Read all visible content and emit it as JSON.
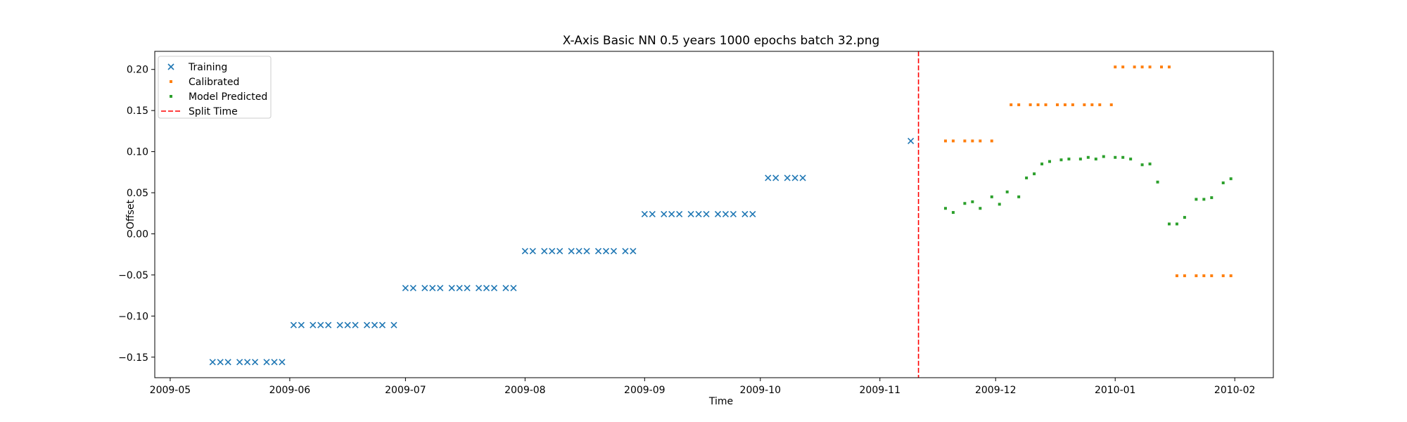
{
  "chart_data": {
    "type": "scatter",
    "title": "X-Axis Basic NN 0.5 years 1000 epochs batch 32.png",
    "xlabel": "Time",
    "ylabel": "Offset",
    "x_type": "date",
    "xlim": [
      "2009-04-27",
      "2010-02-11"
    ],
    "ylim": [
      -0.175,
      0.222
    ],
    "x_ticks": [
      "2009-05",
      "2009-06",
      "2009-07",
      "2009-08",
      "2009-09",
      "2009-10",
      "2009-11",
      "2009-12",
      "2010-01",
      "2010-02"
    ],
    "x_tick_dates": [
      "2009-05-01",
      "2009-06-01",
      "2009-07-01",
      "2009-08-01",
      "2009-09-01",
      "2009-10-01",
      "2009-11-01",
      "2009-12-01",
      "2010-01-01",
      "2010-02-01"
    ],
    "y_ticks": [
      "−0.15",
      "−0.10",
      "−0.05",
      "0.00",
      "0.05",
      "0.10",
      "0.15",
      "0.20"
    ],
    "y_tick_values": [
      -0.15,
      -0.1,
      -0.05,
      0.0,
      0.05,
      0.1,
      0.15,
      0.2
    ],
    "grid": false,
    "legend_position": "top-left",
    "split_time": "2009-11-11",
    "series": [
      {
        "name": "Training",
        "marker": "x",
        "color": "#1f77b4",
        "points": [
          [
            "2009-05-12",
            -0.156
          ],
          [
            "2009-05-14",
            -0.156
          ],
          [
            "2009-05-16",
            -0.156
          ],
          [
            "2009-05-19",
            -0.156
          ],
          [
            "2009-05-21",
            -0.156
          ],
          [
            "2009-05-23",
            -0.156
          ],
          [
            "2009-05-26",
            -0.156
          ],
          [
            "2009-05-28",
            -0.156
          ],
          [
            "2009-05-30",
            -0.156
          ],
          [
            "2009-06-02",
            -0.111
          ],
          [
            "2009-06-04",
            -0.111
          ],
          [
            "2009-06-07",
            -0.111
          ],
          [
            "2009-06-09",
            -0.111
          ],
          [
            "2009-06-11",
            -0.111
          ],
          [
            "2009-06-14",
            -0.111
          ],
          [
            "2009-06-16",
            -0.111
          ],
          [
            "2009-06-18",
            -0.111
          ],
          [
            "2009-06-21",
            -0.111
          ],
          [
            "2009-06-23",
            -0.111
          ],
          [
            "2009-06-25",
            -0.111
          ],
          [
            "2009-06-28",
            -0.111
          ],
          [
            "2009-07-01",
            -0.066
          ],
          [
            "2009-07-03",
            -0.066
          ],
          [
            "2009-07-06",
            -0.066
          ],
          [
            "2009-07-08",
            -0.066
          ],
          [
            "2009-07-10",
            -0.066
          ],
          [
            "2009-07-13",
            -0.066
          ],
          [
            "2009-07-15",
            -0.066
          ],
          [
            "2009-07-17",
            -0.066
          ],
          [
            "2009-07-20",
            -0.066
          ],
          [
            "2009-07-22",
            -0.066
          ],
          [
            "2009-07-24",
            -0.066
          ],
          [
            "2009-07-27",
            -0.066
          ],
          [
            "2009-07-29",
            -0.066
          ],
          [
            "2009-08-01",
            -0.021
          ],
          [
            "2009-08-03",
            -0.021
          ],
          [
            "2009-08-06",
            -0.021
          ],
          [
            "2009-08-08",
            -0.021
          ],
          [
            "2009-08-10",
            -0.021
          ],
          [
            "2009-08-13",
            -0.021
          ],
          [
            "2009-08-15",
            -0.021
          ],
          [
            "2009-08-17",
            -0.021
          ],
          [
            "2009-08-20",
            -0.021
          ],
          [
            "2009-08-22",
            -0.021
          ],
          [
            "2009-08-24",
            -0.021
          ],
          [
            "2009-08-27",
            -0.021
          ],
          [
            "2009-08-29",
            -0.021
          ],
          [
            "2009-09-01",
            0.024
          ],
          [
            "2009-09-03",
            0.024
          ],
          [
            "2009-09-06",
            0.024
          ],
          [
            "2009-09-08",
            0.024
          ],
          [
            "2009-09-10",
            0.024
          ],
          [
            "2009-09-13",
            0.024
          ],
          [
            "2009-09-15",
            0.024
          ],
          [
            "2009-09-17",
            0.024
          ],
          [
            "2009-09-20",
            0.024
          ],
          [
            "2009-09-22",
            0.024
          ],
          [
            "2009-09-24",
            0.024
          ],
          [
            "2009-09-27",
            0.024
          ],
          [
            "2009-09-29",
            0.024
          ],
          [
            "2009-10-03",
            0.068
          ],
          [
            "2009-10-05",
            0.068
          ],
          [
            "2009-10-08",
            0.068
          ],
          [
            "2009-10-10",
            0.068
          ],
          [
            "2009-10-12",
            0.068
          ],
          [
            "2009-11-09",
            0.113
          ]
        ]
      },
      {
        "name": "Calibrated",
        "marker": "square-small",
        "color": "#ff7f0e",
        "points": [
          [
            "2009-11-18",
            0.113
          ],
          [
            "2009-11-20",
            0.113
          ],
          [
            "2009-11-23",
            0.113
          ],
          [
            "2009-11-25",
            0.113
          ],
          [
            "2009-11-27",
            0.113
          ],
          [
            "2009-11-30",
            0.113
          ],
          [
            "2009-12-05",
            0.157
          ],
          [
            "2009-12-07",
            0.157
          ],
          [
            "2009-12-10",
            0.157
          ],
          [
            "2009-12-12",
            0.157
          ],
          [
            "2009-12-14",
            0.157
          ],
          [
            "2009-12-17",
            0.157
          ],
          [
            "2009-12-19",
            0.157
          ],
          [
            "2009-12-21",
            0.157
          ],
          [
            "2009-12-24",
            0.157
          ],
          [
            "2009-12-26",
            0.157
          ],
          [
            "2009-12-28",
            0.157
          ],
          [
            "2009-12-31",
            0.157
          ],
          [
            "2010-01-01",
            0.203
          ],
          [
            "2010-01-03",
            0.203
          ],
          [
            "2010-01-06",
            0.203
          ],
          [
            "2010-01-08",
            0.203
          ],
          [
            "2010-01-10",
            0.203
          ],
          [
            "2010-01-13",
            0.203
          ],
          [
            "2010-01-15",
            0.203
          ],
          [
            "2010-01-17",
            -0.051
          ],
          [
            "2010-01-19",
            -0.051
          ],
          [
            "2010-01-22",
            -0.051
          ],
          [
            "2010-01-24",
            -0.051
          ],
          [
            "2010-01-26",
            -0.051
          ],
          [
            "2010-01-29",
            -0.051
          ],
          [
            "2010-01-31",
            -0.051
          ]
        ]
      },
      {
        "name": "Model Predicted",
        "marker": "square-small",
        "color": "#2ca02c",
        "points": [
          [
            "2009-11-18",
            0.031
          ],
          [
            "2009-11-20",
            0.026
          ],
          [
            "2009-11-23",
            0.037
          ],
          [
            "2009-11-25",
            0.039
          ],
          [
            "2009-11-27",
            0.031
          ],
          [
            "2009-11-30",
            0.045
          ],
          [
            "2009-12-02",
            0.036
          ],
          [
            "2009-12-04",
            0.051
          ],
          [
            "2009-12-07",
            0.045
          ],
          [
            "2009-12-09",
            0.068
          ],
          [
            "2009-12-11",
            0.073
          ],
          [
            "2009-12-13",
            0.085
          ],
          [
            "2009-12-15",
            0.088
          ],
          [
            "2009-12-18",
            0.09
          ],
          [
            "2009-12-20",
            0.091
          ],
          [
            "2009-12-23",
            0.091
          ],
          [
            "2009-12-25",
            0.093
          ],
          [
            "2009-12-27",
            0.091
          ],
          [
            "2009-12-29",
            0.094
          ],
          [
            "2010-01-01",
            0.093
          ],
          [
            "2010-01-03",
            0.093
          ],
          [
            "2010-01-05",
            0.091
          ],
          [
            "2010-01-08",
            0.084
          ],
          [
            "2010-01-10",
            0.085
          ],
          [
            "2010-01-12",
            0.063
          ],
          [
            "2010-01-15",
            0.012
          ],
          [
            "2010-01-17",
            0.012
          ],
          [
            "2010-01-19",
            0.02
          ],
          [
            "2010-01-22",
            0.042
          ],
          [
            "2010-01-24",
            0.042
          ],
          [
            "2010-01-26",
            0.044
          ],
          [
            "2010-01-29",
            0.062
          ],
          [
            "2010-01-31",
            0.067
          ]
        ]
      },
      {
        "name": "Split Time",
        "marker": "dashed-line",
        "color": "#ff0000"
      }
    ]
  }
}
